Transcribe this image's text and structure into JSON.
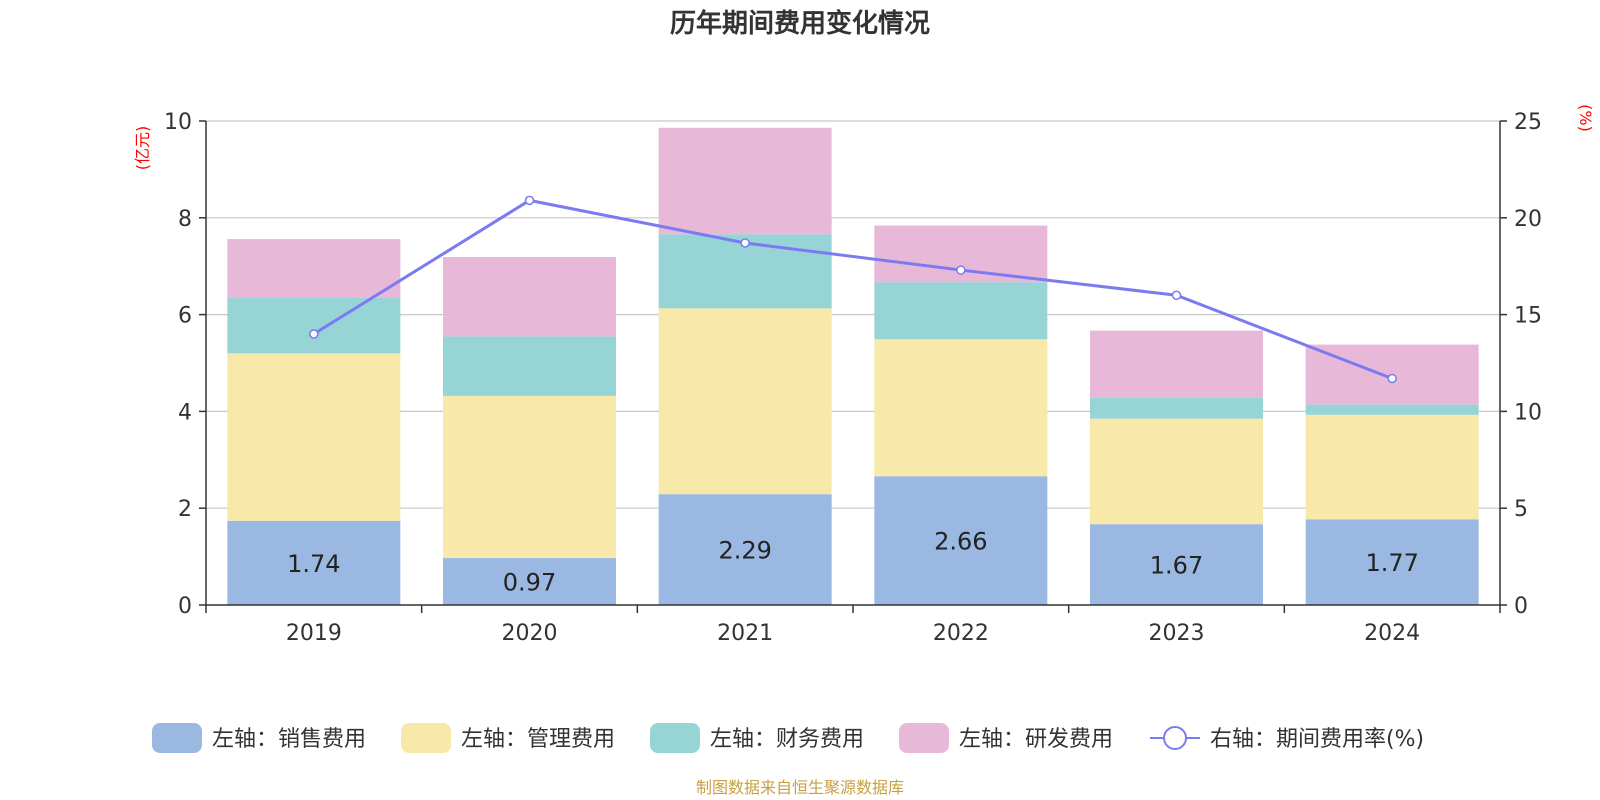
{
  "chart_data": {
    "type": "bar",
    "stacked": true,
    "title": "历年期间费用变化情况",
    "categories": [
      "2019",
      "2020",
      "2021",
      "2022",
      "2023",
      "2024"
    ],
    "left_axis": {
      "unit_label": "(亿元)",
      "ylim": [
        0,
        10
      ],
      "ticks": [
        0,
        2,
        4,
        6,
        8,
        10
      ]
    },
    "right_axis": {
      "unit_label": "(%)",
      "ylim": [
        0,
        25
      ],
      "ticks": [
        0,
        5,
        10,
        15,
        20,
        25
      ]
    },
    "series": [
      {
        "name": "左轴：销售费用",
        "color": "#9bb8e2",
        "values": [
          1.74,
          0.97,
          2.29,
          2.66,
          1.67,
          1.77
        ],
        "show_labels": true
      },
      {
        "name": "左轴：管理费用",
        "color": "#f8e8a9",
        "values": [
          3.46,
          3.35,
          3.84,
          2.83,
          2.18,
          2.16
        ]
      },
      {
        "name": "左轴：财务费用",
        "color": "#97d4d5",
        "values": [
          1.15,
          1.23,
          1.53,
          1.18,
          0.43,
          0.21
        ]
      },
      {
        "name": "左轴：研发费用",
        "color": "#e8b8d8",
        "values": [
          1.21,
          1.64,
          2.2,
          1.17,
          1.39,
          1.24
        ]
      }
    ],
    "line": {
      "name": "右轴：期间费用率(%)",
      "color": "#7b7bf0",
      "values": [
        14.0,
        20.9,
        18.7,
        17.3,
        16.0,
        11.7
      ]
    },
    "grid": true,
    "legend_position": "bottom"
  },
  "source_note": "制图数据来自恒生聚源数据库"
}
